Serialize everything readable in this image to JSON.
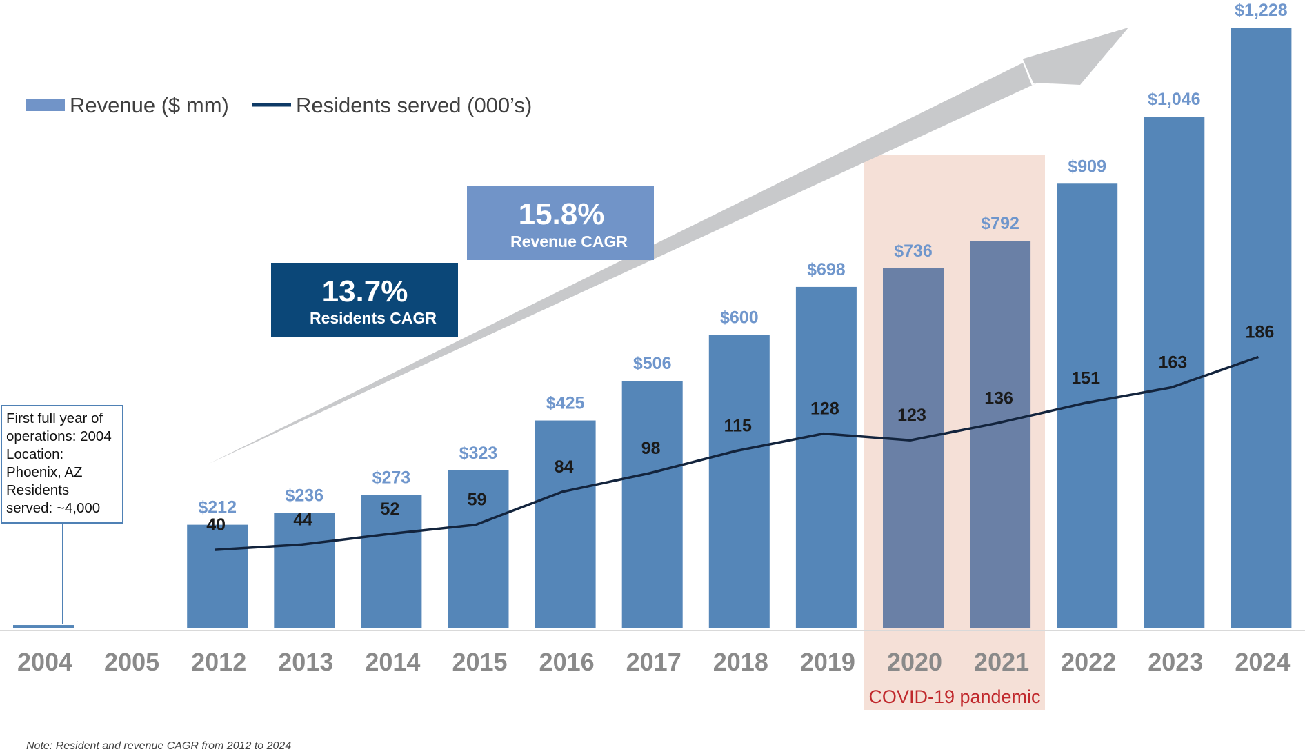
{
  "chart_data": {
    "type": "bar",
    "title": "",
    "categories": [
      "2004",
      "2005",
      "2012",
      "2013",
      "2014",
      "2015",
      "2016",
      "2017",
      "2018",
      "2019",
      "2020",
      "2021",
      "2022",
      "2023",
      "2024"
    ],
    "series": [
      {
        "name": "Revenue ($ mm)",
        "chart_type": "bar",
        "values": [
          7,
          0,
          212,
          236,
          273,
          323,
          425,
          506,
          600,
          698,
          736,
          792,
          909,
          1046,
          1228
        ],
        "labels": [
          "",
          "",
          "$212",
          "$236",
          "$273",
          "$323",
          "$425",
          "$506",
          "$600",
          "$698",
          "$736",
          "$792",
          "$909",
          "$1,046",
          "$1,228"
        ]
      },
      {
        "name": "Residents served (000’s)",
        "chart_type": "line",
        "values": [
          null,
          null,
          40,
          44,
          52,
          59,
          84,
          98,
          115,
          128,
          123,
          136,
          151,
          163,
          186
        ],
        "labels": [
          "",
          "",
          "40",
          "44",
          "52",
          "59",
          "84",
          "98",
          "115",
          "128",
          "123",
          "136",
          "151",
          "163",
          "186"
        ]
      }
    ],
    "xlabel": "",
    "ylabel": "",
    "ylim": [
      0,
      1228
    ],
    "grid": false,
    "legend": "top-left",
    "highlight": {
      "categories": [
        "2020",
        "2021"
      ],
      "label": "COVID-19 pandemic"
    },
    "annotations": {
      "revenue_cagr": {
        "value": "15.8%",
        "label": "Revenue CAGR"
      },
      "residents_cagr": {
        "value": "13.7%",
        "label": "Residents CAGR"
      },
      "callout_lines": [
        "First full year of",
        "operations: 2004",
        "Location:",
        "Phoenix, AZ",
        "Residents",
        "served: ~4,000"
      ],
      "note": "Note: Resident and revenue CAGR from 2012 to 2024"
    }
  },
  "colors": {
    "bar": "#5586b8",
    "bar_covid": "#6a80a6",
    "bar_label": "#6f96cc",
    "line": "#13243d",
    "legend_bar": "#7194c8",
    "legend_line": "#0e3a66",
    "arrow": "#c8c9cb",
    "revenue_box": "#7194c8",
    "residents_box": "#0b4778",
    "covid_fill": "#f5e0d7",
    "covid_text": "#c0282c",
    "axis_text": "#8a8a8a",
    "callout_border": "#4f81b5"
  }
}
